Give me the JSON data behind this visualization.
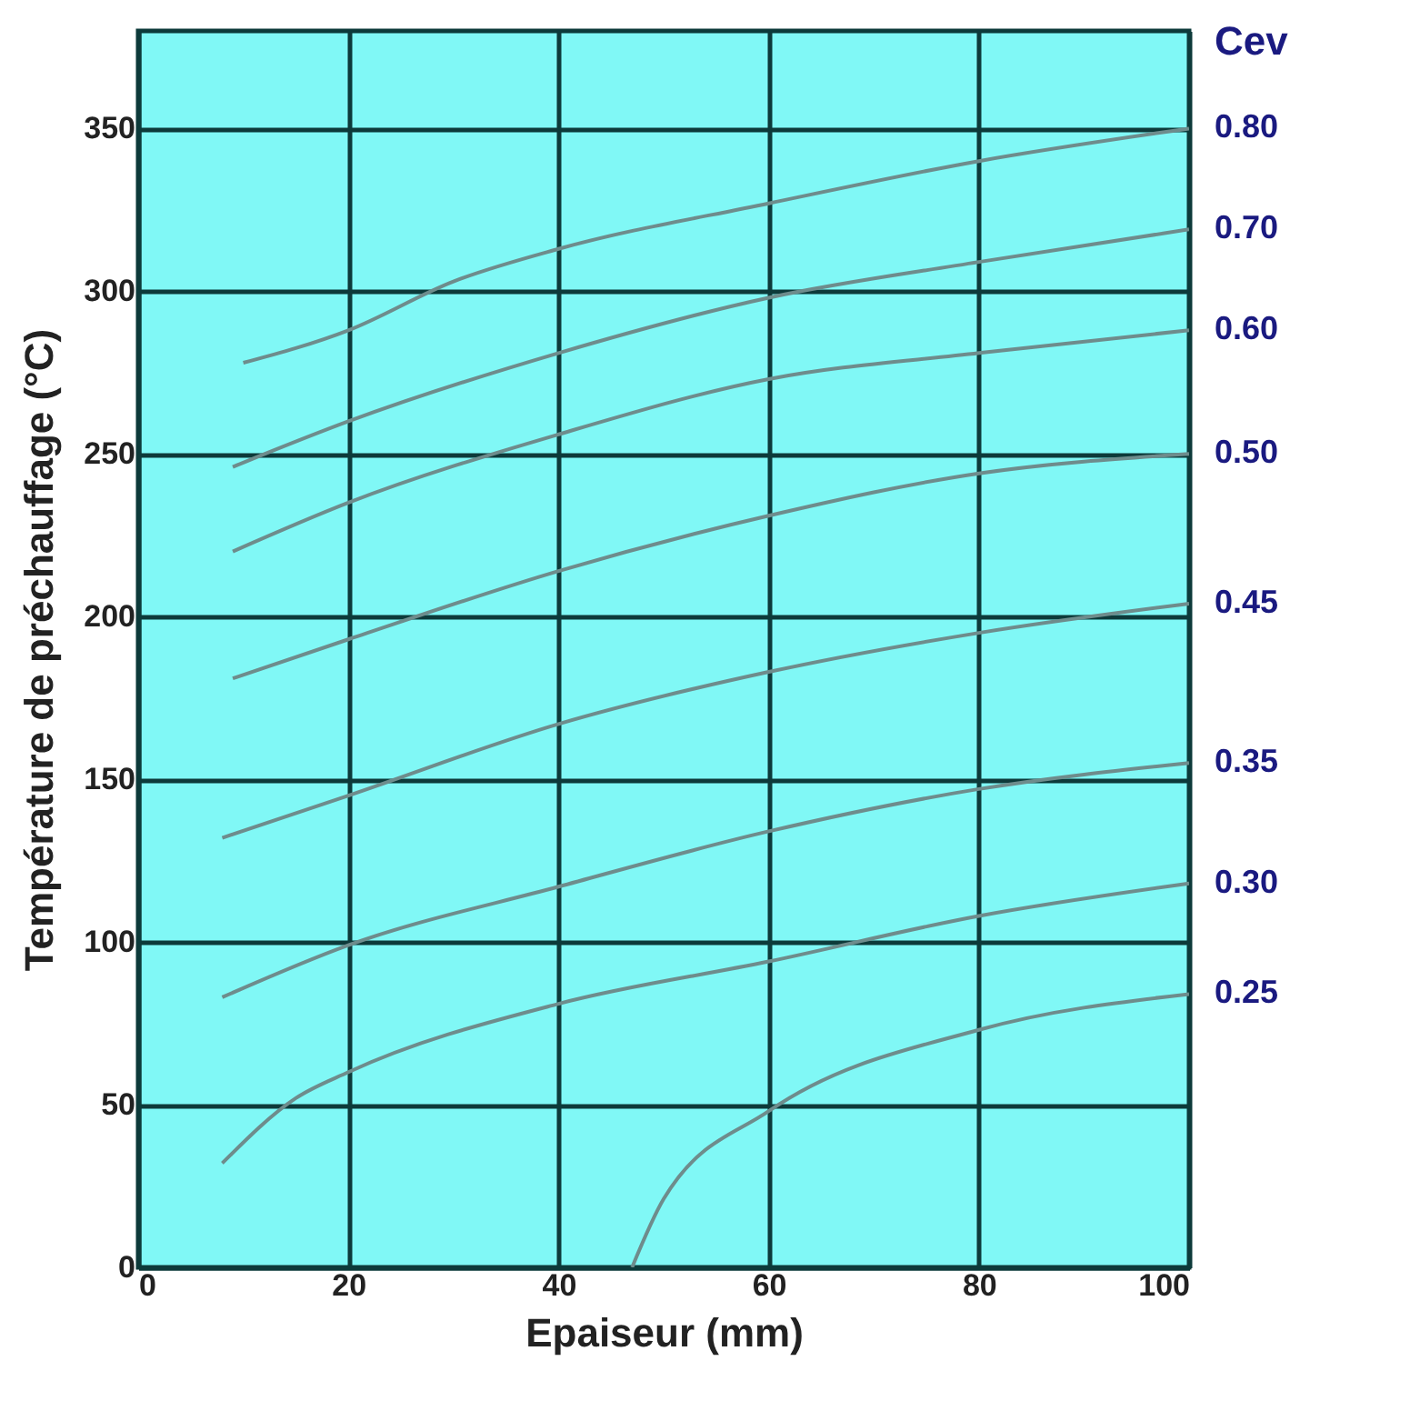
{
  "chart_data": {
    "type": "line",
    "xlabel": "Epaiseur (mm)",
    "ylabel": "Température de préchauffage (°C)",
    "legend_title": "Cev",
    "xlim": [
      0,
      100
    ],
    "ylim": [
      0,
      380
    ],
    "xticks": [
      0,
      20,
      40,
      60,
      80,
      100
    ],
    "yticks": [
      0,
      50,
      100,
      150,
      200,
      250,
      300,
      350
    ],
    "grid": true,
    "line_style": "solid",
    "series": [
      {
        "name": "0.80",
        "color": "#6e8c8c",
        "x": [
          10,
          20,
          30,
          40,
          60,
          80,
          100
        ],
        "values": [
          278,
          288,
          303,
          313,
          327,
          340,
          350
        ]
      },
      {
        "name": "0.70",
        "color": "#6e8c8c",
        "x": [
          9,
          20,
          40,
          60,
          80,
          100
        ],
        "values": [
          246,
          260,
          281,
          298,
          309,
          319
        ]
      },
      {
        "name": "0.60",
        "color": "#6e8c8c",
        "x": [
          9,
          20,
          40,
          60,
          80,
          100
        ],
        "values": [
          220,
          235,
          256,
          273,
          281,
          288
        ]
      },
      {
        "name": "0.50",
        "color": "#6e8c8c",
        "x": [
          9,
          20,
          40,
          60,
          80,
          100
        ],
        "values": [
          181,
          193,
          214,
          231,
          244,
          250
        ]
      },
      {
        "name": "0.45",
        "color": "#6e8c8c",
        "x": [
          8,
          20,
          40,
          60,
          80,
          100
        ],
        "values": [
          132,
          145,
          167,
          183,
          195,
          204
        ]
      },
      {
        "name": "0.35",
        "color": "#6e8c8c",
        "x": [
          8,
          20,
          40,
          60,
          80,
          100
        ],
        "values": [
          83,
          99,
          117,
          134,
          147,
          155
        ]
      },
      {
        "name": "0.30",
        "color": "#6e8c8c",
        "x": [
          8,
          15,
          20,
          40,
          60,
          80,
          100
        ],
        "values": [
          32,
          52,
          60,
          81,
          94,
          108,
          118
        ]
      },
      {
        "name": "0.25",
        "color": "#6e8c8c",
        "x": [
          47,
          50,
          60,
          80,
          100
        ],
        "values": [
          0,
          21,
          48,
          73,
          84
        ]
      }
    ]
  }
}
